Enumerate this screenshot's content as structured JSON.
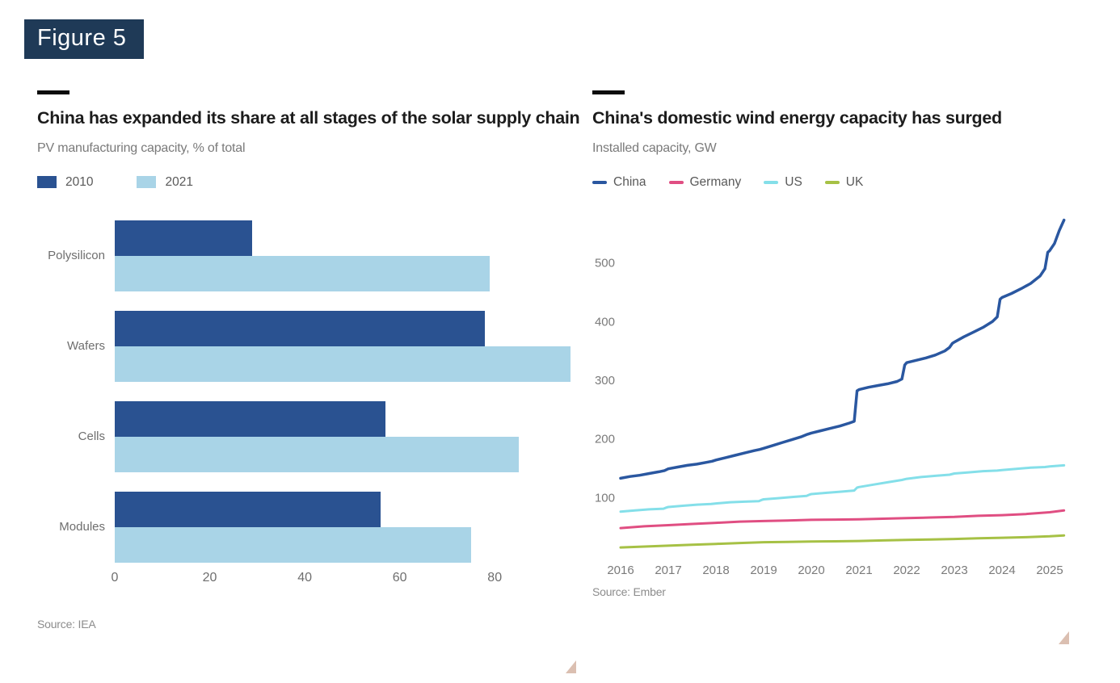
{
  "figure_label": "Figure 5",
  "badge_color": "#1f3a57",
  "chart_data": [
    {
      "type": "bar",
      "orientation": "horizontal",
      "title": "China has expanded its share at all stages of the solar supply chain",
      "subtitle": "PV manufacturing capacity, % of total",
      "categories": [
        "Polysilicon",
        "Wafers",
        "Cells",
        "Modules"
      ],
      "series": [
        {
          "name": "2010",
          "color": "#2a5291",
          "values": [
            29,
            78,
            57,
            56
          ]
        },
        {
          "name": "2021",
          "color": "#a9d4e7",
          "values": [
            79,
            96,
            85,
            75
          ]
        }
      ],
      "xticks": [
        0,
        20,
        40,
        60,
        80
      ],
      "xlim": [
        0,
        98
      ],
      "grid": false,
      "legend_position": "top",
      "source": "Source: IEA"
    },
    {
      "type": "line",
      "title": "China's domestic wind energy capacity has surged",
      "subtitle": "Installed capacity, GW",
      "xlim": [
        2016,
        2025.3
      ],
      "ylim": [
        0,
        600
      ],
      "yticks": [
        100,
        200,
        300,
        400,
        500
      ],
      "xticks": [
        2016,
        2017,
        2018,
        2019,
        2020,
        2021,
        2022,
        2023,
        2024,
        2025
      ],
      "grid": false,
      "legend_position": "top",
      "source": "Source: Ember",
      "series": [
        {
          "name": "China",
          "color": "#2a57a0",
          "width": 3.5,
          "points": [
            [
              2016.0,
              133
            ],
            [
              2016.2,
              136
            ],
            [
              2016.4,
              138
            ],
            [
              2016.6,
              141
            ],
            [
              2016.8,
              144
            ],
            [
              2016.92,
              146
            ],
            [
              2017.0,
              149
            ],
            [
              2017.2,
              152
            ],
            [
              2017.4,
              155
            ],
            [
              2017.6,
              157
            ],
            [
              2017.8,
              160
            ],
            [
              2017.92,
              162
            ],
            [
              2018.0,
              164
            ],
            [
              2018.2,
              168
            ],
            [
              2018.4,
              172
            ],
            [
              2018.6,
              176
            ],
            [
              2018.8,
              180
            ],
            [
              2018.92,
              182
            ],
            [
              2019.0,
              184
            ],
            [
              2019.2,
              189
            ],
            [
              2019.4,
              194
            ],
            [
              2019.6,
              199
            ],
            [
              2019.8,
              204
            ],
            [
              2019.92,
              208
            ],
            [
              2020.0,
              210
            ],
            [
              2020.2,
              214
            ],
            [
              2020.4,
              218
            ],
            [
              2020.6,
              222
            ],
            [
              2020.8,
              227
            ],
            [
              2020.9,
              230
            ],
            [
              2020.96,
              282
            ],
            [
              2021.0,
              284
            ],
            [
              2021.2,
              288
            ],
            [
              2021.4,
              291
            ],
            [
              2021.6,
              294
            ],
            [
              2021.8,
              298
            ],
            [
              2021.9,
              302
            ],
            [
              2021.96,
              326
            ],
            [
              2022.0,
              330
            ],
            [
              2022.2,
              334
            ],
            [
              2022.4,
              338
            ],
            [
              2022.6,
              343
            ],
            [
              2022.8,
              350
            ],
            [
              2022.9,
              356
            ],
            [
              2022.96,
              363
            ],
            [
              2023.0,
              365
            ],
            [
              2023.2,
              374
            ],
            [
              2023.4,
              382
            ],
            [
              2023.6,
              390
            ],
            [
              2023.8,
              400
            ],
            [
              2023.9,
              408
            ],
            [
              2023.96,
              438
            ],
            [
              2024.0,
              441
            ],
            [
              2024.2,
              448
            ],
            [
              2024.4,
              456
            ],
            [
              2024.6,
              465
            ],
            [
              2024.8,
              478
            ],
            [
              2024.9,
              490
            ],
            [
              2024.96,
              518
            ],
            [
              2025.0,
              521
            ],
            [
              2025.1,
              533
            ],
            [
              2025.2,
              555
            ],
            [
              2025.3,
              573
            ]
          ]
        },
        {
          "name": "Germany",
          "color": "#e04e82",
          "width": 3,
          "points": [
            [
              2016.0,
              48
            ],
            [
              2016.5,
              51
            ],
            [
              2017.0,
              53
            ],
            [
              2017.5,
              55
            ],
            [
              2018.0,
              57
            ],
            [
              2018.5,
              59
            ],
            [
              2019.0,
              60
            ],
            [
              2019.5,
              61
            ],
            [
              2020.0,
              62
            ],
            [
              2020.5,
              62.5
            ],
            [
              2021.0,
              63
            ],
            [
              2021.5,
              64
            ],
            [
              2022.0,
              65
            ],
            [
              2022.5,
              66
            ],
            [
              2023.0,
              67
            ],
            [
              2023.5,
              69
            ],
            [
              2024.0,
              70
            ],
            [
              2024.5,
              72
            ],
            [
              2025.0,
              75
            ],
            [
              2025.3,
              78
            ]
          ]
        },
        {
          "name": "US",
          "color": "#84dfe9",
          "width": 3,
          "points": [
            [
              2016.0,
              76
            ],
            [
              2016.3,
              78
            ],
            [
              2016.6,
              80
            ],
            [
              2016.9,
              81
            ],
            [
              2016.96,
              83
            ],
            [
              2017.0,
              84
            ],
            [
              2017.3,
              86
            ],
            [
              2017.6,
              88
            ],
            [
              2017.9,
              89
            ],
            [
              2018.0,
              90
            ],
            [
              2018.3,
              92
            ],
            [
              2018.6,
              93
            ],
            [
              2018.9,
              94
            ],
            [
              2018.96,
              96
            ],
            [
              2019.0,
              97
            ],
            [
              2019.3,
              99
            ],
            [
              2019.6,
              101
            ],
            [
              2019.9,
              103
            ],
            [
              2019.96,
              105
            ],
            [
              2020.0,
              106
            ],
            [
              2020.3,
              108
            ],
            [
              2020.6,
              110
            ],
            [
              2020.9,
              112
            ],
            [
              2020.96,
              117
            ],
            [
              2021.0,
              118
            ],
            [
              2021.3,
              122
            ],
            [
              2021.6,
              126
            ],
            [
              2021.9,
              130
            ],
            [
              2022.0,
              132
            ],
            [
              2022.3,
              135
            ],
            [
              2022.6,
              137
            ],
            [
              2022.9,
              139
            ],
            [
              2023.0,
              141
            ],
            [
              2023.3,
              143
            ],
            [
              2023.6,
              145
            ],
            [
              2023.9,
              146
            ],
            [
              2024.0,
              147
            ],
            [
              2024.3,
              149
            ],
            [
              2024.6,
              151
            ],
            [
              2024.9,
              152
            ],
            [
              2025.0,
              153
            ],
            [
              2025.3,
              155
            ]
          ]
        },
        {
          "name": "UK",
          "color": "#a6c145",
          "width": 3,
          "points": [
            [
              2016.0,
              15
            ],
            [
              2016.5,
              16.5
            ],
            [
              2017.0,
              18
            ],
            [
              2017.5,
              19.5
            ],
            [
              2018.0,
              21
            ],
            [
              2018.5,
              22.5
            ],
            [
              2019.0,
              24
            ],
            [
              2019.5,
              24.5
            ],
            [
              2020.0,
              25
            ],
            [
              2020.5,
              25.5
            ],
            [
              2021.0,
              26
            ],
            [
              2021.5,
              27
            ],
            [
              2022.0,
              28
            ],
            [
              2022.5,
              28.5
            ],
            [
              2023.0,
              29.5
            ],
            [
              2023.5,
              30.5
            ],
            [
              2024.0,
              31.5
            ],
            [
              2024.5,
              32.5
            ],
            [
              2025.0,
              34
            ],
            [
              2025.3,
              35.5
            ]
          ]
        }
      ]
    }
  ]
}
